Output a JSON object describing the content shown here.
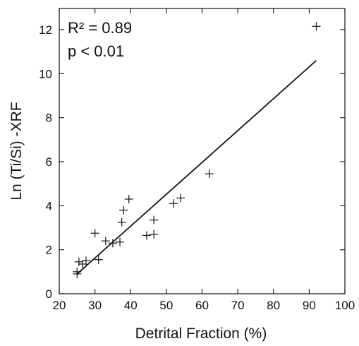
{
  "chart_data": {
    "type": "scatter",
    "xlabel": "Detrital Fraction (%)",
    "ylabel": "Ln (Ti/Si) -XRF",
    "xlim": [
      20,
      100
    ],
    "ylim": [
      0,
      13
    ],
    "xticks": [
      20,
      30,
      40,
      50,
      60,
      70,
      80,
      90,
      100
    ],
    "yticks": [
      0,
      2,
      4,
      6,
      8,
      10,
      12
    ],
    "grid": false,
    "legend": "none",
    "annotations": [
      "R² = 0.89",
      "p < 0.01"
    ],
    "points": [
      {
        "x": 25,
        "y": 0.9
      },
      {
        "x": 25,
        "y": 1.0
      },
      {
        "x": 25.5,
        "y": 1.45
      },
      {
        "x": 26.5,
        "y": 1.35
      },
      {
        "x": 27.5,
        "y": 1.5
      },
      {
        "x": 30,
        "y": 2.75
      },
      {
        "x": 31,
        "y": 1.55
      },
      {
        "x": 33,
        "y": 2.4
      },
      {
        "x": 35,
        "y": 2.3
      },
      {
        "x": 37,
        "y": 2.35
      },
      {
        "x": 37.5,
        "y": 3.25
      },
      {
        "x": 38,
        "y": 3.8
      },
      {
        "x": 39.5,
        "y": 4.3
      },
      {
        "x": 44.5,
        "y": 2.65
      },
      {
        "x": 46.5,
        "y": 2.7
      },
      {
        "x": 46.5,
        "y": 3.35
      },
      {
        "x": 52,
        "y": 4.1
      },
      {
        "x": 54,
        "y": 4.35
      },
      {
        "x": 62,
        "y": 5.45
      },
      {
        "x": 92,
        "y": 12.15
      }
    ],
    "fit_line": {
      "x": [
        25,
        92
      ],
      "y": [
        0.9,
        10.6
      ]
    }
  }
}
